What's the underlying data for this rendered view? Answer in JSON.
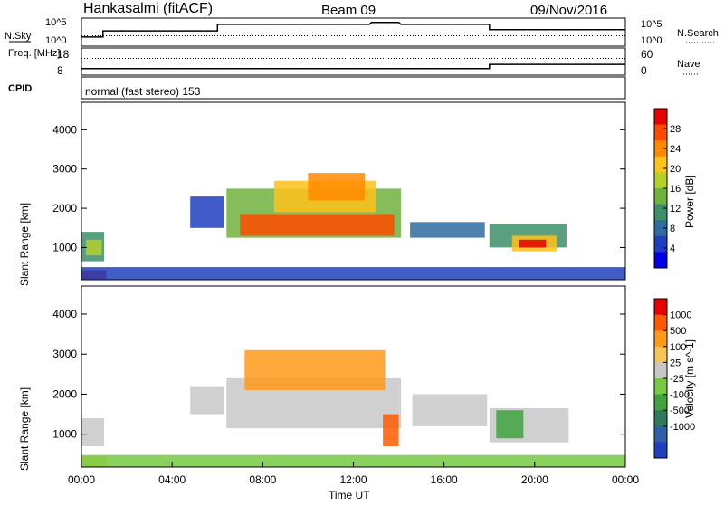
{
  "header": {
    "station": "Hankasalmi (fitACF)",
    "beam": "Beam 09",
    "date": "09/Nov/2016"
  },
  "chart_data": [
    {
      "type": "line",
      "name": "noise-panel",
      "left_label": "N.Sky",
      "right_label": "N.Search",
      "left_ticks": [
        "10^5",
        "10^0"
      ],
      "right_ticks": [
        "10^5",
        "10^0"
      ],
      "x": [
        0,
        0.95,
        0.95,
        6,
        6,
        12.7,
        12.8,
        14.0,
        14.1,
        18,
        18,
        24
      ],
      "sky": [
        0.3,
        0.3,
        0.55,
        0.55,
        0.82,
        0.82,
        0.9,
        0.9,
        0.82,
        0.82,
        0.6,
        0.6
      ],
      "search": [
        0.35,
        0.35,
        0.35,
        0.35,
        0.35,
        0.35,
        0.35,
        0.35,
        0.35,
        0.35,
        0.35,
        0.35
      ]
    },
    {
      "type": "line",
      "name": "freq-panel",
      "left_label": "Freq. [MHz]",
      "right_label": "Nave",
      "left_ticks": [
        "18",
        "8"
      ],
      "right_ticks": [
        "60",
        "0"
      ],
      "x": [
        0,
        6,
        6,
        18,
        18,
        24
      ],
      "freq": [
        10,
        10,
        10,
        10,
        11.8,
        11.8
      ],
      "nave": [
        38,
        38,
        38,
        38,
        38,
        38
      ]
    },
    {
      "type": "text",
      "name": "cpid-panel",
      "label": "CPID",
      "value": "normal (fast stereo) 153"
    },
    {
      "type": "heatmap",
      "name": "power",
      "ylabel": "Slant Range [km]",
      "yticks": [
        1000,
        2000,
        3000,
        4000
      ],
      "ylim": [
        180,
        4700
      ],
      "colorbar": {
        "label": "Power [dB]",
        "ticks": [
          "4",
          "8",
          "12",
          "16",
          "20",
          "24",
          "28"
        ],
        "colors": [
          "#0000e6",
          "#1f3fbf",
          "#2f6b9f",
          "#3d8f6a",
          "#6fb23c",
          "#b6d02a",
          "#ffc21a",
          "#ff8a00",
          "#ff4a00",
          "#e60000"
        ]
      },
      "regions": [
        {
          "t0": 0.0,
          "t1": 1.1,
          "r0": 200,
          "r1": 420,
          "level": 9
        },
        {
          "t0": 0.0,
          "t1": 1.0,
          "r0": 650,
          "r1": 1400,
          "level": 3
        },
        {
          "t0": 0.2,
          "t1": 0.9,
          "r0": 800,
          "r1": 1200,
          "level": 5
        },
        {
          "t0": 4.8,
          "t1": 6.3,
          "r0": 1500,
          "r1": 2300,
          "level": 1
        },
        {
          "t0": 6.4,
          "t1": 14.1,
          "r0": 1250,
          "r1": 2500,
          "level": 4
        },
        {
          "t0": 7.0,
          "t1": 13.8,
          "r0": 1300,
          "r1": 1850,
          "level": 8
        },
        {
          "t0": 8.5,
          "t1": 13.0,
          "r0": 1900,
          "r1": 2700,
          "level": 6
        },
        {
          "t0": 10.0,
          "t1": 12.5,
          "r0": 2200,
          "r1": 2900,
          "level": 7
        },
        {
          "t0": 14.5,
          "t1": 17.8,
          "r0": 1250,
          "r1": 1650,
          "level": 2
        },
        {
          "t0": 18.0,
          "t1": 21.4,
          "r0": 1000,
          "r1": 1600,
          "level": 3
        },
        {
          "t0": 19.0,
          "t1": 21.0,
          "r0": 900,
          "r1": 1300,
          "level": 6
        },
        {
          "t0": 19.3,
          "t1": 20.5,
          "r0": 1000,
          "r1": 1200,
          "level": 9
        },
        {
          "t0": 0.0,
          "t1": 24.0,
          "r0": 180,
          "r1": 500,
          "level": 1
        }
      ]
    },
    {
      "type": "heatmap",
      "name": "velocity",
      "ylabel": "Slant Range [km]",
      "yticks": [
        1000,
        2000,
        3000,
        4000
      ],
      "ylim": [
        180,
        4700
      ],
      "xlabel": "Time UT",
      "xticks": [
        "00:00",
        "04:00",
        "08:00",
        "12:00",
        "16:00",
        "20:00",
        "00:00"
      ],
      "xlim": [
        0,
        24
      ],
      "colorbar": {
        "label": "Velocity [m s^-1]",
        "ticks": [
          "1000",
          "500",
          "100",
          "25",
          "-25",
          "-100",
          "-500",
          "-1000"
        ],
        "colors": [
          "#1f3fbf",
          "#2f5fa6",
          "#2f7a5a",
          "#3fa43f",
          "#77c943",
          "#c8c8c8",
          "#f5c45a",
          "#ff9a1a",
          "#ff5a00",
          "#e60000"
        ]
      },
      "regions": [
        {
          "t0": 0.0,
          "t1": 1.1,
          "r0": 200,
          "r1": 450,
          "level": 6
        },
        {
          "t0": 0.0,
          "t1": 1.0,
          "r0": 700,
          "r1": 1400,
          "level": 5
        },
        {
          "t0": 4.8,
          "t1": 6.3,
          "r0": 1500,
          "r1": 2200,
          "level": 5
        },
        {
          "t0": 6.4,
          "t1": 14.1,
          "r0": 1150,
          "r1": 2400,
          "level": 5
        },
        {
          "t0": 7.2,
          "t1": 13.4,
          "r0": 2100,
          "r1": 3100,
          "level": 7
        },
        {
          "t0": 13.3,
          "t1": 14.0,
          "r0": 700,
          "r1": 1500,
          "level": 8
        },
        {
          "t0": 14.6,
          "t1": 17.9,
          "r0": 1200,
          "r1": 2000,
          "level": 5
        },
        {
          "t0": 18.0,
          "t1": 21.5,
          "r0": 800,
          "r1": 1650,
          "level": 5
        },
        {
          "t0": 18.3,
          "t1": 19.5,
          "r0": 900,
          "r1": 1600,
          "level": 3
        },
        {
          "t0": 0.0,
          "t1": 24.0,
          "r0": 180,
          "r1": 480,
          "level": 4
        }
      ]
    }
  ]
}
